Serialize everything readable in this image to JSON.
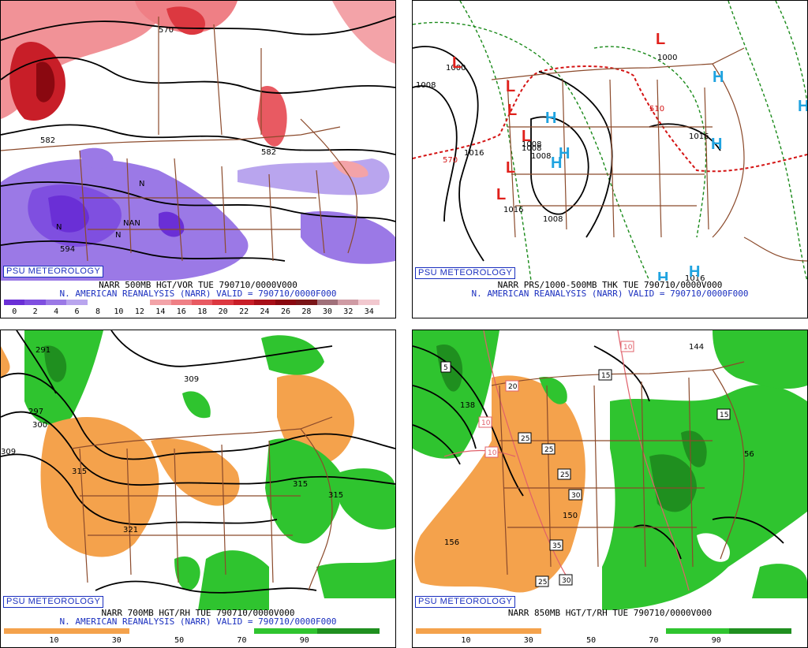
{
  "panels": [
    {
      "id": "p1",
      "brand": "PSU METEOROLOGY",
      "title1": "NARR 500MB HGT/VOR TUE 790710/0000V000",
      "title2": "N. AMERICAN REANALYSIS (NARR) VALID = 790710/0000F000",
      "colorbar_labels": [
        "0",
        "2",
        "4",
        "6",
        "8",
        "10",
        "12",
        "14",
        "16",
        "18",
        "20",
        "22",
        "24",
        "26",
        "28",
        "30",
        "32",
        "34"
      ],
      "colorbar_colors": [
        "#6a2fd6",
        "#7f4fe0",
        "#9b79e6",
        "#b9a5ee",
        "#ffffff",
        "#ffffff",
        "#ffffff",
        "#f3a3a8",
        "#ef7f85",
        "#e85a62",
        "#dc3840",
        "#c81e28",
        "#a80f18",
        "#8a0810",
        "#7a1518",
        "#a0707a",
        "#cf9ba4",
        "#f2c8cf"
      ],
      "labels": [
        "570",
        "582",
        "582",
        "594",
        "N",
        "NAN",
        "N",
        "N"
      ]
    },
    {
      "id": "p2",
      "brand": "PSU METEOROLOGY",
      "title1": "NARR PRS/1000-500MB THK TUE 790710/0000V000",
      "title2": "N. AMERICAN REANALYSIS (NARR) VALID = 790710/0000F000",
      "labels": [
        "1000",
        "1008",
        "1008",
        "1016",
        "510",
        "570",
        "1008",
        "1008",
        "1016",
        "1008",
        "1000",
        "1016",
        "1016"
      ],
      "lows": [
        "L",
        "L",
        "L",
        "L",
        "L",
        "L",
        "L"
      ],
      "highs": [
        "H",
        "H",
        "H",
        "H",
        "H",
        "H",
        "H",
        "H"
      ]
    },
    {
      "id": "p3",
      "brand": "PSU METEOROLOGY",
      "title1": "NARR 700MB HGT/RH TUE 790710/0000V000",
      "title2": "N. AMERICAN REANALYSIS (NARR) VALID = 790710/0000F000",
      "colorbar_labels": [
        "10",
        "30",
        "50",
        "70",
        "90"
      ],
      "labels": [
        "291",
        "297",
        "300",
        "309",
        "309",
        "315",
        "321",
        "315",
        "315"
      ]
    },
    {
      "id": "p4",
      "title1": "NARR 850MB HGT/T/RH TUE 790710/0000V000",
      "brand": "PSU METEOROLOGY",
      "colorbar_labels": [
        "10",
        "30",
        "50",
        "70",
        "90"
      ],
      "labels": [
        "144",
        "138",
        "156",
        "150",
        "56",
        "5"
      ],
      "temp_boxes": [
        "15",
        "15",
        "20",
        "25",
        "25",
        "25",
        "30",
        "35",
        "25",
        "30",
        "10",
        "10",
        "10"
      ]
    }
  ],
  "colors": {
    "map_lines": "#8b4a2b",
    "height_contour": "#000000",
    "low_red": "#e0201b",
    "high_blue": "#1fa3e0",
    "rh_green": "#2fc42f",
    "rh_orange": "#f4a24c",
    "thickness_red": "#d41414",
    "thickness_green_dash": "#1a8a1a"
  }
}
